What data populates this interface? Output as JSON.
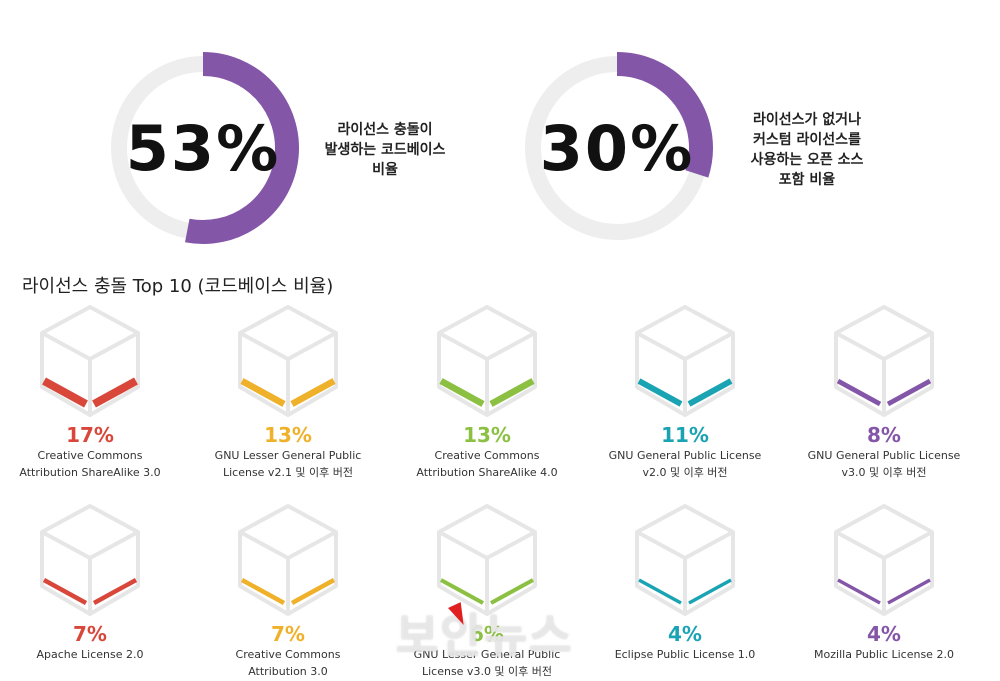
{
  "donuts": [
    {
      "value": 53,
      "label": "53%",
      "caption": [
        "라이선스 충돌이",
        "발생하는 코드베이스",
        "비율"
      ],
      "color": "#8456a8"
    },
    {
      "value": 30,
      "label": "30%",
      "caption": [
        "라이선스가 없거나",
        "커스텀 라이선스를",
        "사용하는 오픈 소스",
        "포함 비율"
      ],
      "color": "#8456a8"
    }
  ],
  "section_title": "라이선스 충돌 Top 10 (코드베이스 비율)",
  "chart_data": {
    "type": "bar",
    "title": "라이선스 충돌 Top 10 (코드베이스 비율)",
    "categories": [
      "Creative Commons Attribution ShareAlike 3.0",
      "GNU Lesser General Public License v2.1 및 이후 버전",
      "Creative Commons Attribution ShareAlike 4.0",
      "GNU General Public License v2.0 및 이후 버전",
      "GNU General Public License v3.0 및 이후 버전",
      "Apache License 2.0",
      "Creative Commons Attribution 3.0",
      "GNU Lesser General Public License v3.0 및 이후 버전",
      "Eclipse Public License 1.0",
      "Mozilla Public License 2.0"
    ],
    "values": [
      17,
      13,
      13,
      11,
      8,
      7,
      7,
      6,
      4,
      4
    ],
    "unit": "%"
  },
  "items": [
    {
      "pct": "17%",
      "line1": "Creative Commons",
      "line2": "Attribution ShareAlike 3.0",
      "color": "#d9463a"
    },
    {
      "pct": "13%",
      "line1": "GNU Lesser General Public",
      "line2": "License v2.1 및 이후 버전",
      "color": "#efb12a"
    },
    {
      "pct": "13%",
      "line1": "Creative Commons",
      "line2": "Attribution ShareAlike 4.0",
      "color": "#8cc043"
    },
    {
      "pct": "11%",
      "line1": "GNU General Public License",
      "line2": "v2.0 및 이후 버전",
      "color": "#1aa4b3"
    },
    {
      "pct": "8%",
      "line1": "GNU General Public License",
      "line2": "v3.0 및 이후 버전",
      "color": "#8456a8"
    },
    {
      "pct": "7%",
      "line1": "Apache License 2.0",
      "line2": "",
      "color": "#d9463a"
    },
    {
      "pct": "7%",
      "line1": "Creative Commons",
      "line2": "Attribution 3.0",
      "color": "#efb12a"
    },
    {
      "pct": "6%",
      "line1": "GNU Lesser General Public",
      "line2": "License v3.0 및 이후 버전",
      "color": "#8cc043"
    },
    {
      "pct": "4%",
      "line1": "Eclipse Public License 1.0",
      "line2": "",
      "color": "#1aa4b3"
    },
    {
      "pct": "4%",
      "line1": "Mozilla Public License 2.0",
      "line2": "",
      "color": "#8456a8"
    }
  ],
  "watermark": "보안뉴스"
}
